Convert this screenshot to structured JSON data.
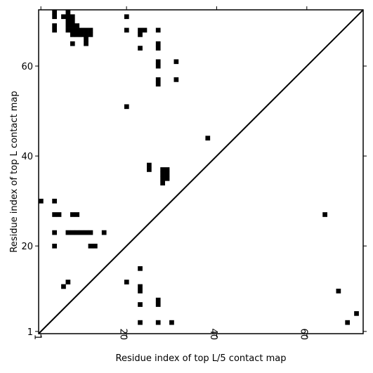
{
  "chart_data": {
    "type": "heatmap",
    "xlabel": "Residue index of top L/5 contact map",
    "ylabel": "Residue index of top L contact map",
    "xlim": [
      0.5,
      72.5
    ],
    "ylim": [
      0.5,
      72.5
    ],
    "x_ticks": [
      1,
      20,
      40,
      60
    ],
    "y_ticks": [
      1,
      20,
      40,
      60
    ],
    "x_tick_labels": [
      "1",
      "20",
      "40",
      "60"
    ],
    "y_tick_labels": [
      "1",
      "20",
      "40",
      "60"
    ],
    "x_tick_rotation": -90,
    "diagonal": true,
    "colors": {
      "contact": "#000000",
      "background": "#ffffff",
      "frame": "#000000"
    },
    "upper_contacts": [
      [
        4,
        72
      ],
      [
        4,
        71
      ],
      [
        4,
        69
      ],
      [
        4,
        68
      ],
      [
        6,
        71
      ],
      [
        7,
        72
      ],
      [
        7,
        71
      ],
      [
        7,
        70
      ],
      [
        7,
        69
      ],
      [
        7,
        68
      ],
      [
        8,
        71
      ],
      [
        8,
        70
      ],
      [
        8,
        69
      ],
      [
        8,
        68
      ],
      [
        8,
        67
      ],
      [
        8,
        65
      ],
      [
        9,
        69
      ],
      [
        9,
        68
      ],
      [
        9,
        67
      ],
      [
        10,
        68
      ],
      [
        10,
        67
      ],
      [
        11,
        68
      ],
      [
        11,
        67
      ],
      [
        11,
        66
      ],
      [
        11,
        65
      ],
      [
        12,
        68
      ],
      [
        12,
        67
      ],
      [
        20,
        71
      ],
      [
        20,
        68
      ],
      [
        20,
        51
      ],
      [
        23,
        68
      ],
      [
        23,
        67
      ],
      [
        23,
        64
      ],
      [
        24,
        68
      ],
      [
        25,
        38
      ],
      [
        25,
        37
      ],
      [
        27,
        68
      ],
      [
        27,
        65
      ],
      [
        27,
        64
      ],
      [
        27,
        61
      ],
      [
        27,
        60
      ],
      [
        27,
        57
      ],
      [
        27,
        56
      ],
      [
        31,
        61
      ],
      [
        31,
        57
      ],
      [
        28,
        37
      ],
      [
        28,
        36
      ],
      [
        28,
        35
      ],
      [
        28,
        34
      ],
      [
        29,
        37
      ],
      [
        29,
        36
      ],
      [
        29,
        35
      ],
      [
        38,
        44
      ]
    ],
    "lower_contacts": [
      [
        1,
        30
      ],
      [
        4,
        30
      ],
      [
        4,
        27
      ],
      [
        5,
        27
      ],
      [
        4,
        23
      ],
      [
        4,
        20
      ],
      [
        8,
        27
      ],
      [
        9,
        27
      ],
      [
        7,
        23
      ],
      [
        8,
        23
      ],
      [
        9,
        23
      ],
      [
        10,
        23
      ],
      [
        11,
        23
      ],
      [
        12,
        23
      ],
      [
        15,
        23
      ],
      [
        12,
        20
      ],
      [
        13,
        20
      ],
      [
        6,
        11
      ],
      [
        7,
        12
      ],
      [
        20,
        12
      ],
      [
        23,
        15
      ],
      [
        23,
        11
      ],
      [
        23,
        10
      ],
      [
        23,
        7
      ],
      [
        23,
        3
      ],
      [
        27,
        8
      ],
      [
        27,
        7
      ],
      [
        27,
        3
      ],
      [
        30,
        3
      ],
      [
        64,
        27
      ],
      [
        67,
        10
      ],
      [
        69,
        3
      ],
      [
        71,
        5
      ]
    ]
  }
}
